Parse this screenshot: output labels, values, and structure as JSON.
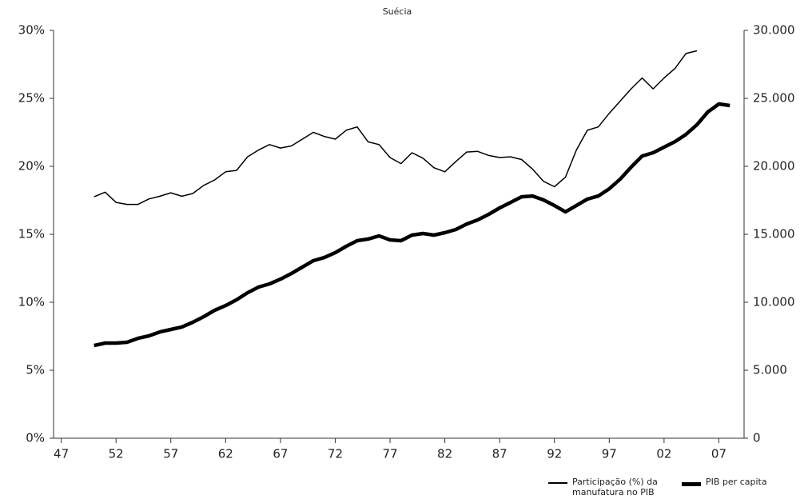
{
  "chart_data": {
    "type": "line",
    "title": "Suécia",
    "x": [
      1950,
      1951,
      1952,
      1953,
      1954,
      1955,
      1956,
      1957,
      1958,
      1959,
      1960,
      1961,
      1962,
      1963,
      1964,
      1965,
      1966,
      1967,
      1968,
      1969,
      1970,
      1971,
      1972,
      1973,
      1974,
      1975,
      1976,
      1977,
      1978,
      1979,
      1980,
      1981,
      1982,
      1983,
      1984,
      1985,
      1986,
      1987,
      1988,
      1989,
      1990,
      1991,
      1992,
      1993,
      1994,
      1995,
      1996,
      1997,
      1998,
      1999,
      2000,
      2001,
      2002,
      2003,
      2004,
      2005,
      2006,
      2007,
      2008
    ],
    "series": [
      {
        "name": "Participação (%) da manufatura no PIB",
        "color": "#000000",
        "width": 1.5,
        "values": [
          17.76,
          18.1,
          17.35,
          17.2,
          17.2,
          17.6,
          17.8,
          18.05,
          17.8,
          18.0,
          18.6,
          19.0,
          19.6,
          19.7,
          20.7,
          21.2,
          21.6,
          21.35,
          21.5,
          22.0,
          22.5,
          22.2,
          22.0,
          22.65,
          22.9,
          21.8,
          21.6,
          20.65,
          20.2,
          21.0,
          20.6,
          19.9,
          19.6,
          20.35,
          21.05,
          21.1,
          20.8,
          20.65,
          20.7,
          20.5,
          19.8,
          18.9,
          18.5,
          19.2,
          21.2,
          22.65,
          22.9,
          23.9,
          24.8,
          25.7,
          26.5,
          25.7,
          26.5,
          27.2,
          28.3,
          28.5,
          null,
          null,
          null
        ]
      },
      {
        "name": "PIB per capita",
        "color": "#000000",
        "width": 4.5,
        "axis": "y2",
        "values": [
          6820,
          7000,
          7000,
          7060,
          7350,
          7530,
          7820,
          8000,
          8180,
          8530,
          8940,
          9410,
          9760,
          10180,
          10700,
          11120,
          11350,
          11700,
          12120,
          12590,
          13060,
          13290,
          13650,
          14120,
          14530,
          14650,
          14880,
          14590,
          14530,
          14940,
          15060,
          14940,
          15120,
          15350,
          15760,
          16060,
          16470,
          16940,
          17350,
          17760,
          17820,
          17530,
          17120,
          16650,
          17120,
          17590,
          17820,
          18350,
          19060,
          19940,
          20760,
          21000,
          21410,
          21820,
          22350,
          23060,
          24000,
          24590,
          24470
        ]
      }
    ],
    "xlim": [
      1946.3,
      2009.3
    ],
    "xticks": [
      {
        "value": 1947,
        "label": "47"
      },
      {
        "value": 1952,
        "label": "52"
      },
      {
        "value": 1957,
        "label": "57"
      },
      {
        "value": 1962,
        "label": "62"
      },
      {
        "value": 1967,
        "label": "67"
      },
      {
        "value": 1972,
        "label": "72"
      },
      {
        "value": 1977,
        "label": "77"
      },
      {
        "value": 1982,
        "label": "82"
      },
      {
        "value": 1987,
        "label": "87"
      },
      {
        "value": 1992,
        "label": "92"
      },
      {
        "value": 1997,
        "label": "97"
      },
      {
        "value": 2002,
        "label": "02"
      },
      {
        "value": 2007,
        "label": "07"
      }
    ],
    "ylim": [
      0,
      30
    ],
    "yticks": [
      {
        "value": 0,
        "label": "0%"
      },
      {
        "value": 5,
        "label": "5%"
      },
      {
        "value": 10,
        "label": "10%"
      },
      {
        "value": 15,
        "label": "15%"
      },
      {
        "value": 20,
        "label": "20%"
      },
      {
        "value": 25,
        "label": "25%"
      },
      {
        "value": 30,
        "label": "30%"
      }
    ],
    "y2lim": [
      0,
      30000
    ],
    "y2ticks": [
      0,
      {
        "value": 5000,
        "label": "5.000"
      },
      {
        "value": 10000,
        "label": "10.000"
      },
      {
        "value": 15000,
        "label": "15.000"
      },
      {
        "value": 20000,
        "label": "20.000"
      },
      {
        "value": 25000,
        "label": "25.000"
      },
      {
        "value": 30000,
        "label": "30.000"
      }
    ],
    "legend": "bottom-right"
  }
}
